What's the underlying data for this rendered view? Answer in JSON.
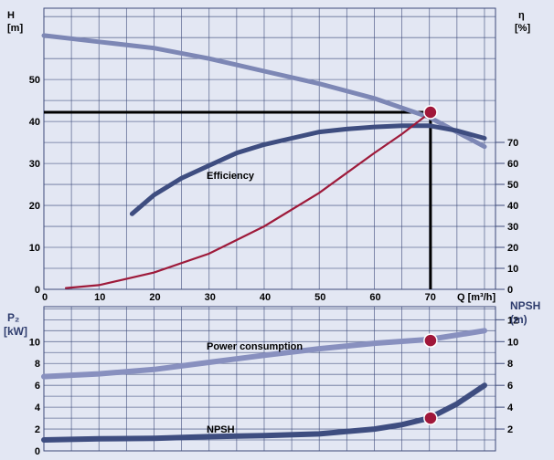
{
  "colors": {
    "background": "#e3e7f3",
    "grid": "#3d4a7a",
    "head_curve": "#7d87b5",
    "efficiency_curve": "#3e4d80",
    "load_curve": "#9e1a3a",
    "operating_point": "#a0173a",
    "power_curve": "#8890bf",
    "npsh_curve": "#3e4d80",
    "axis_text_blue": "#2f3d6e"
  },
  "chart_data": [
    {
      "type": "line",
      "xlabel": "Q [m³/h]",
      "ylabel_left": [
        "H",
        "[m]"
      ],
      "ylabel_right": [
        "η",
        "[%]"
      ],
      "xlim": [
        0,
        82
      ],
      "ylim": [
        0,
        67
      ],
      "x_ticks": [
        0,
        10,
        20,
        30,
        40,
        50,
        60,
        70
      ],
      "y_ticks_left": [
        0,
        10,
        20,
        30,
        40,
        50
      ],
      "y_ticks_right": [
        0,
        10,
        20,
        30,
        40,
        50,
        60,
        70
      ],
      "right_axis_range_H": [
        0,
        45
      ],
      "annotations": [
        "Efficiency"
      ],
      "operating_point": {
        "q": 70.2,
        "h": 42.2
      },
      "series": [
        {
          "id": "head",
          "x": [
            0,
            10,
            20,
            30,
            40,
            50,
            60,
            70,
            80
          ],
          "y": [
            60.5,
            59,
            57.5,
            55,
            52,
            49,
            45.5,
            41,
            34
          ]
        },
        {
          "id": "efficiency",
          "x": [
            16,
            20,
            25,
            30,
            35,
            40,
            45,
            50,
            55,
            60,
            65,
            70,
            75,
            80
          ],
          "y": [
            18,
            22.5,
            26.5,
            29.5,
            32.5,
            34.5,
            36,
            37.5,
            38.2,
            38.7,
            39,
            39,
            37.8,
            36
          ]
        },
        {
          "id": "system",
          "x": [
            4,
            10,
            20,
            30,
            40,
            50,
            60,
            65,
            70.2
          ],
          "y": [
            0.3,
            1,
            4,
            8.5,
            15,
            23,
            32.5,
            37,
            42.2
          ]
        }
      ]
    },
    {
      "type": "line",
      "ylabel_left": [
        "P₂",
        "[kW]"
      ],
      "ylabel_right": [
        "NPSH",
        "(m)"
      ],
      "xlim": [
        0,
        82
      ],
      "ylim": [
        0,
        13.2
      ],
      "y_ticks_left": [
        0,
        2,
        4,
        6,
        8,
        10
      ],
      "y_ticks_right": [
        2,
        4,
        6,
        8,
        10,
        12
      ],
      "annotations": [
        "Power consumption",
        "NPSH"
      ],
      "series": [
        {
          "id": "power",
          "x": [
            0,
            10,
            20,
            30,
            40,
            50,
            60,
            70,
            80
          ],
          "y": [
            6.8,
            7.05,
            7.45,
            8.1,
            8.75,
            9.35,
            9.85,
            10.2,
            11
          ]
        },
        {
          "id": "npsh",
          "x": [
            0,
            10,
            20,
            30,
            40,
            50,
            60,
            65,
            70,
            75,
            80
          ],
          "y": [
            1,
            1.1,
            1.15,
            1.3,
            1.4,
            1.55,
            2,
            2.4,
            3,
            4.3,
            6
          ]
        }
      ],
      "points": [
        {
          "series": "power",
          "x": 70.2,
          "y": 10.1
        },
        {
          "series": "npsh",
          "x": 70.2,
          "y": 3
        }
      ]
    }
  ]
}
